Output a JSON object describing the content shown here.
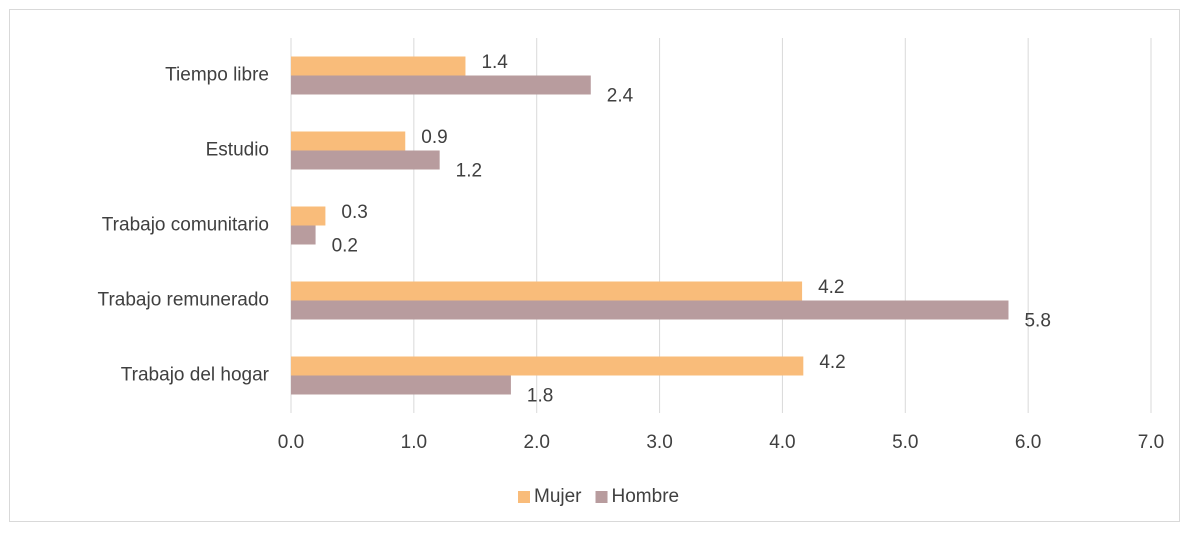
{
  "chart_data": {
    "type": "bar",
    "orientation": "horizontal",
    "categories": [
      "Tiempo libre",
      "Estudio",
      "Trabajo comunitario",
      "Trabajo remunerado",
      "Trabajo del hogar"
    ],
    "series": [
      {
        "name": "Mujer",
        "color": "#f9bc7a",
        "values": [
          1.42,
          0.93,
          0.28,
          4.16,
          4.17
        ],
        "value_labels": [
          "1.4",
          "0.9",
          "0.3",
          "4.2",
          "4.2"
        ]
      },
      {
        "name": "Hombre",
        "color": "#b89c9e",
        "values": [
          2.44,
          1.21,
          0.2,
          5.84,
          1.79
        ],
        "value_labels": [
          "2.4",
          "1.2",
          "0.2",
          "5.8",
          "1.8"
        ]
      }
    ],
    "xlim": [
      0,
      7
    ],
    "xticks": [
      {
        "value": 0,
        "label": "0.0"
      },
      {
        "value": 1,
        "label": "1.0"
      },
      {
        "value": 2,
        "label": "2.0"
      },
      {
        "value": 3,
        "label": "3.0"
      },
      {
        "value": 4,
        "label": "4.0"
      },
      {
        "value": 5,
        "label": "5.0"
      },
      {
        "value": 6,
        "label": "6.0"
      },
      {
        "value": 7,
        "label": "7.0"
      }
    ],
    "grid": true,
    "legend": "bottom"
  }
}
